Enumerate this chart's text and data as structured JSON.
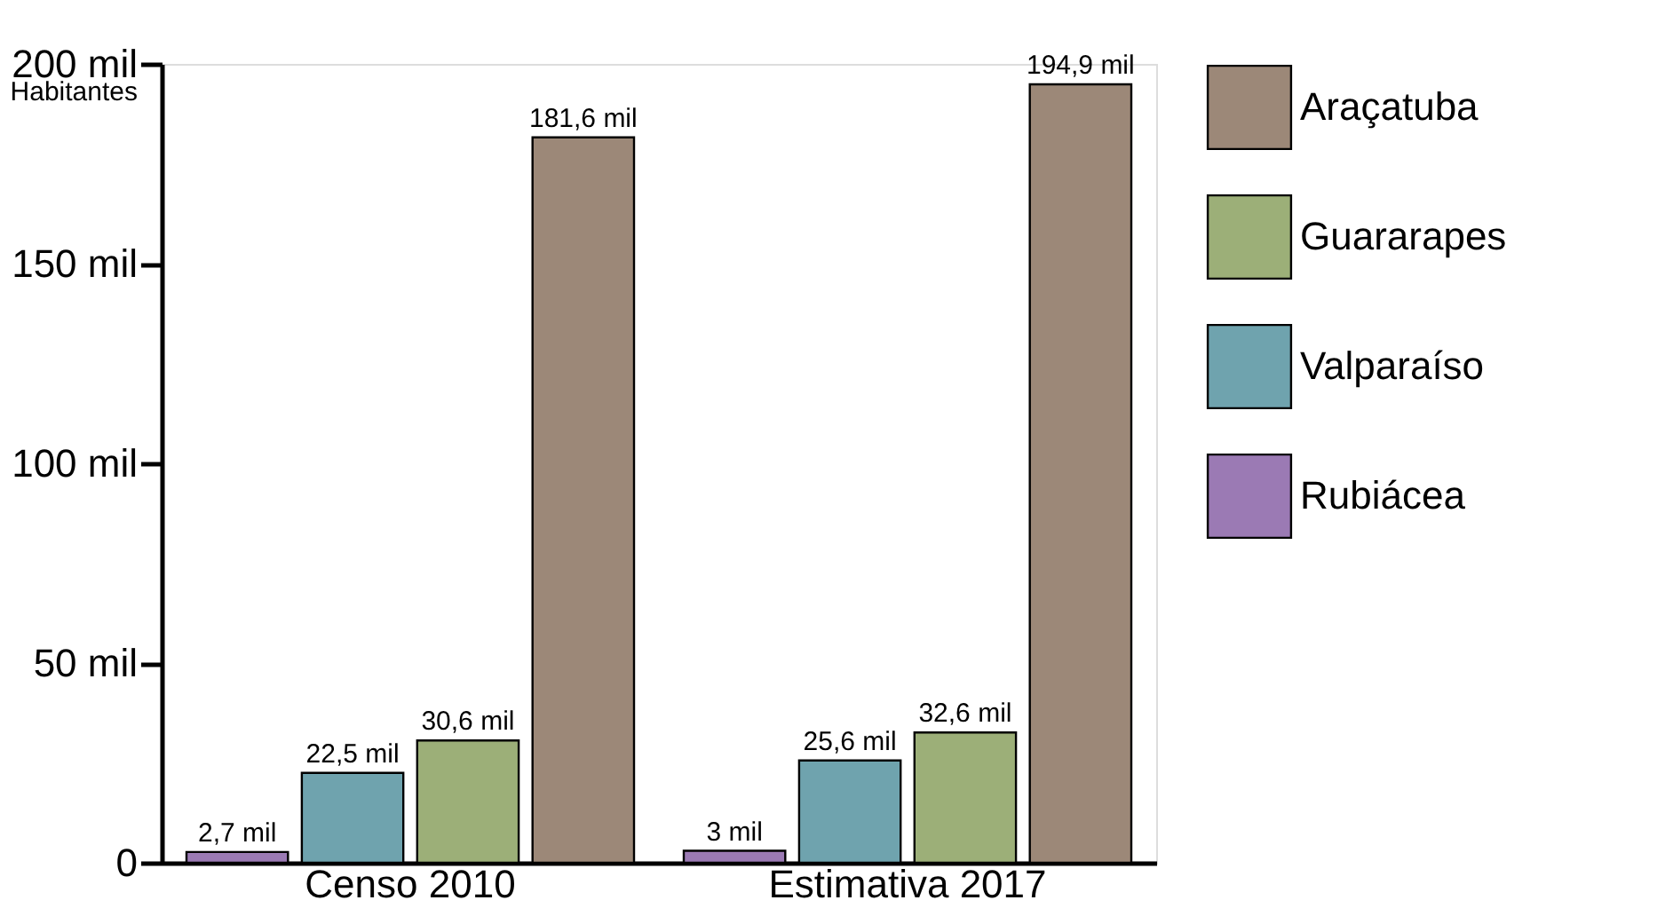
{
  "chart_data": {
    "type": "bar",
    "ylabel": "Habitantes",
    "categories": [
      "Censo 2010",
      "Estimativa 2017"
    ],
    "series": [
      {
        "name": "Rubiácea",
        "color": "#9b7ab4",
        "values": [
          2.7,
          3
        ],
        "value_labels": [
          "2,7 mil",
          "3 mil"
        ]
      },
      {
        "name": "Valparaíso",
        "color": "#6fa3ae",
        "values": [
          22.5,
          25.6
        ],
        "value_labels": [
          "22,5 mil",
          "25,6 mil"
        ]
      },
      {
        "name": "Guararapes",
        "color": "#9caf78",
        "values": [
          30.6,
          32.6
        ],
        "value_labels": [
          "30,6 mil",
          "32,6 mil"
        ]
      },
      {
        "name": "Araçatuba",
        "color": "#9c8878",
        "values": [
          181.6,
          194.9
        ],
        "value_labels": [
          "181,6 mil",
          "194,9 mil"
        ]
      }
    ],
    "ylim": [
      0,
      200
    ],
    "yticks": [
      0,
      {
        "value": 50,
        "label": "50 mil"
      },
      {
        "value": 100,
        "label": "100 mil"
      },
      {
        "value": 150,
        "label": "150 mil"
      },
      {
        "value": 200,
        "label": "200 mil"
      }
    ],
    "grid": false,
    "legend": "right"
  }
}
